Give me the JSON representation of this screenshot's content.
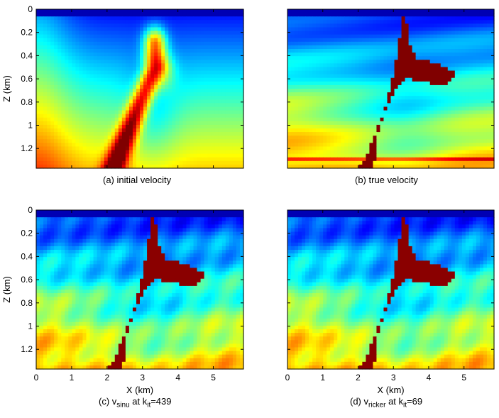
{
  "figure": {
    "panels": [
      {
        "id": "a",
        "caption": "(a) initial velocity",
        "kind": "initial",
        "show_y_ticks": true,
        "show_x_ticks": false,
        "ylabel": "Z (km)",
        "xlabel": ""
      },
      {
        "id": "b",
        "caption": "(b) true velocity",
        "kind": "true",
        "show_y_ticks": false,
        "show_x_ticks": false,
        "ylabel": "",
        "xlabel": ""
      },
      {
        "id": "c",
        "caption_parts": {
          "prefix": "(c) v",
          "sub1": "sinu",
          "mid": " at k",
          "sub2": "it",
          "suffix": "=439"
        },
        "kind": "inverted",
        "show_y_ticks": true,
        "show_x_ticks": true,
        "ylabel": "Z (km)",
        "xlabel": "X (km)"
      },
      {
        "id": "d",
        "caption_parts": {
          "prefix": "(d) v",
          "sub1": "ricker",
          "mid": " at k",
          "sub2": "it",
          "suffix": "=69"
        },
        "kind": "inverted",
        "show_y_ticks": false,
        "show_x_ticks": true,
        "ylabel": "",
        "xlabel": "X (km)"
      }
    ],
    "axes": {
      "x_range_km": [
        0,
        5.85
      ],
      "z_range_km": [
        0,
        1.37
      ],
      "x_ticks": [
        "0",
        "1",
        "2",
        "3",
        "4",
        "5"
      ],
      "z_ticks": [
        "0",
        "0.2",
        "0.4",
        "0.6",
        "0.8",
        "1",
        "1.2"
      ]
    },
    "colormap": "jet"
  }
}
